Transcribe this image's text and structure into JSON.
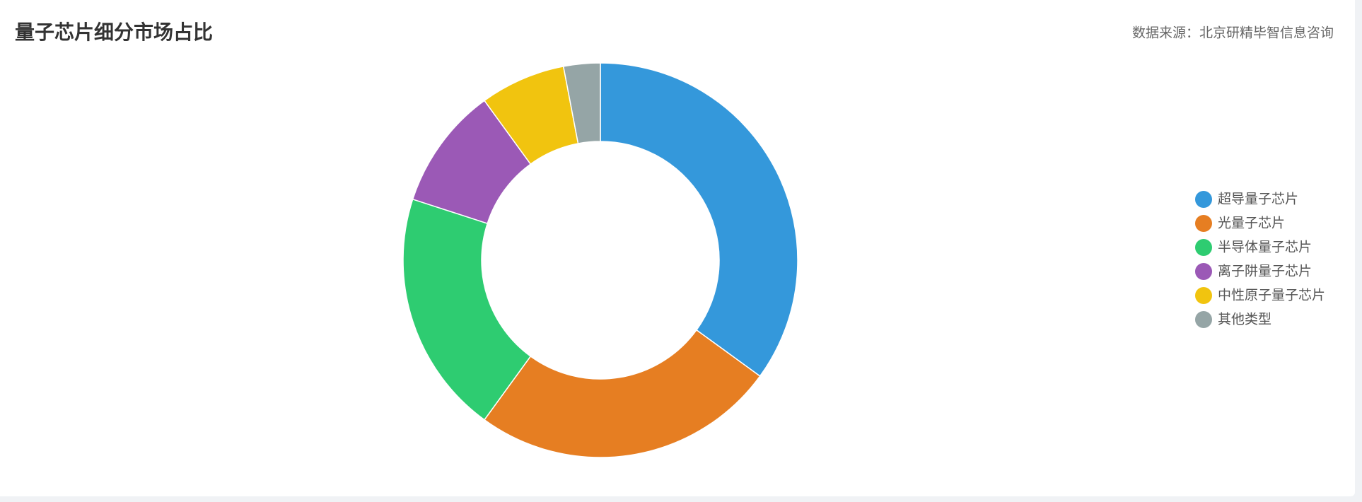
{
  "chart_data": {
    "type": "pie",
    "title": "量子芯片细分市场占比",
    "source": "数据来源：北京研精毕智信息咨询",
    "categories": [
      "超导量子芯片",
      "光量子芯片",
      "半导体量子芯片",
      "离子阱量子芯片",
      "中性原子量子芯片",
      "其他类型"
    ],
    "values": [
      35,
      25,
      20,
      10,
      7,
      3
    ],
    "colors": [
      "#3498db",
      "#e67e22",
      "#2ecc71",
      "#9b59b6",
      "#f1c40f",
      "#95a5a6"
    ],
    "legend": "right"
  }
}
